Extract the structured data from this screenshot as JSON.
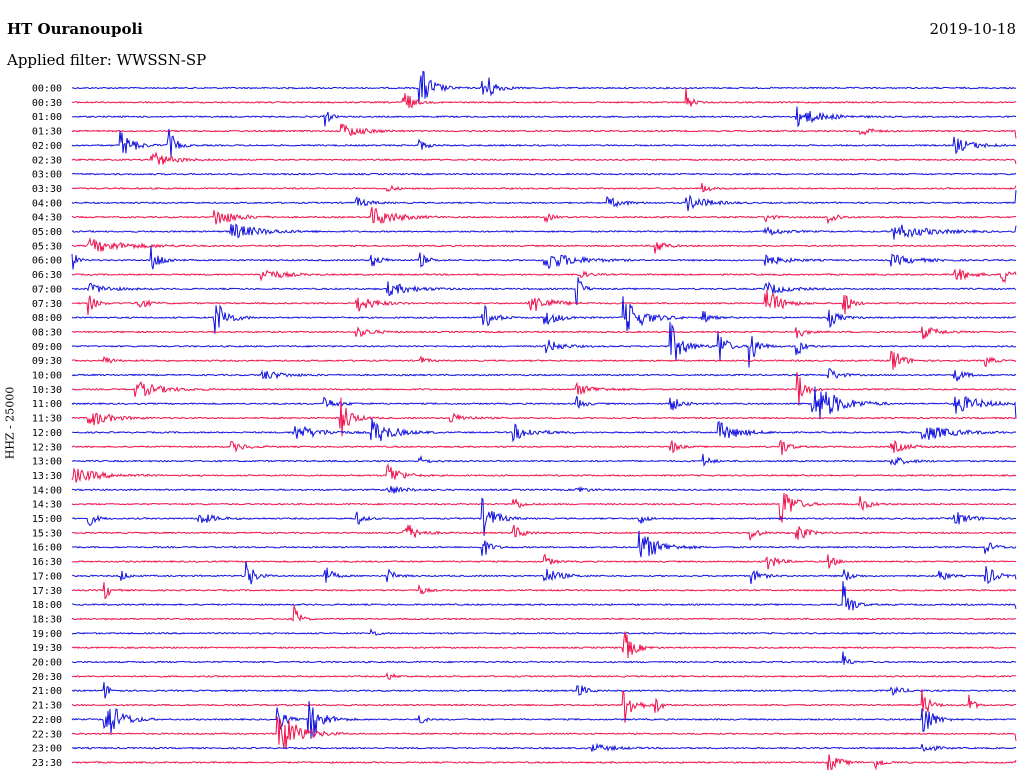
{
  "header": {
    "station": "HT Ouranoupoli",
    "filter": "Applied filter: WWSSN-SP",
    "date": "2019-10-18"
  },
  "colors": {
    "blue": "#1010e0",
    "red": "#f0104a"
  },
  "chart_data": {
    "type": "line",
    "title": "HT Ouranoupoli",
    "subtitle": "Applied filter: WWSSN-SP",
    "date": "2019-10-18",
    "ylabel": "HHZ - 25000",
    "grid": false,
    "x_unit": "minutes",
    "xlim": [
      0,
      30
    ],
    "rows": [
      {
        "label": "00:00",
        "color": "blue",
        "events": [
          [
            11,
            5,
            0.95
          ],
          [
            13,
            4,
            0.9
          ]
        ]
      },
      {
        "label": "00:30",
        "color": "red",
        "events": [
          [
            10.5,
            3,
            0.7
          ],
          [
            19.5,
            2,
            0.55
          ]
        ]
      },
      {
        "label": "01:00",
        "color": "blue",
        "events": [
          [
            8,
            2,
            0.45
          ],
          [
            23,
            10,
            0.35
          ]
        ]
      },
      {
        "label": "01:30",
        "color": "red",
        "events": [
          [
            8.5,
            8,
            0.3
          ],
          [
            25,
            4,
            0.25
          ],
          [
            30,
            3,
            0.8
          ]
        ]
      },
      {
        "label": "02:00",
        "color": "blue",
        "events": [
          [
            1.5,
            5,
            0.6
          ],
          [
            3,
            3,
            0.8
          ],
          [
            11,
            3,
            0.25
          ],
          [
            28,
            8,
            0.3
          ]
        ]
      },
      {
        "label": "02:30",
        "color": "red",
        "events": [
          [
            2.5,
            8,
            0.3
          ],
          [
            30,
            2,
            0.5
          ]
        ]
      },
      {
        "label": "03:00",
        "color": "blue",
        "events": []
      },
      {
        "label": "03:30",
        "color": "red",
        "events": [
          [
            10,
            3,
            0.15
          ],
          [
            20,
            3,
            0.2
          ],
          [
            30,
            3,
            0.4
          ]
        ]
      },
      {
        "label": "04:00",
        "color": "blue",
        "events": [
          [
            9,
            5,
            0.2
          ],
          [
            17,
            6,
            0.2
          ],
          [
            19.5,
            8,
            0.3
          ],
          [
            30,
            8,
            0.85
          ]
        ]
      },
      {
        "label": "04:30",
        "color": "red",
        "events": [
          [
            4.5,
            8,
            0.35
          ],
          [
            9.5,
            10,
            0.35
          ],
          [
            15,
            3,
            0.2
          ],
          [
            22,
            3,
            0.2
          ],
          [
            24,
            3,
            0.4
          ]
        ]
      },
      {
        "label": "05:00",
        "color": "blue",
        "events": [
          [
            5,
            12,
            0.3
          ],
          [
            22,
            6,
            0.2
          ],
          [
            26,
            14,
            0.3
          ],
          [
            30,
            6,
            0.25
          ]
        ]
      },
      {
        "label": "05:30",
        "color": "red",
        "events": [
          [
            0.5,
            15,
            0.25
          ],
          [
            18.5,
            3,
            0.45
          ]
        ]
      },
      {
        "label": "06:00",
        "color": "blue",
        "events": [
          [
            0,
            2,
            0.4
          ],
          [
            2.5,
            4,
            0.5
          ],
          [
            9.5,
            4,
            0.25
          ],
          [
            11,
            3,
            0.35
          ],
          [
            15,
            12,
            0.35
          ],
          [
            22,
            8,
            0.2
          ],
          [
            26,
            10,
            0.2
          ]
        ]
      },
      {
        "label": "06:30",
        "color": "red",
        "events": [
          [
            6,
            8,
            0.25
          ],
          [
            16,
            4,
            0.2
          ],
          [
            28,
            6,
            0.3
          ],
          [
            29.5,
            4,
            0.4
          ]
        ]
      },
      {
        "label": "07:00",
        "color": "blue",
        "events": [
          [
            0.5,
            8,
            0.2
          ],
          [
            10,
            10,
            0.25
          ],
          [
            16,
            2,
            0.95
          ],
          [
            22,
            8,
            0.25
          ]
        ]
      },
      {
        "label": "07:30",
        "color": "red",
        "events": [
          [
            0.5,
            3,
            0.4
          ],
          [
            2,
            4,
            0.3
          ],
          [
            9,
            7,
            0.35
          ],
          [
            14.5,
            8,
            0.4
          ],
          [
            22,
            6,
            0.6
          ],
          [
            24.5,
            3,
            0.5
          ]
        ]
      },
      {
        "label": "08:00",
        "color": "blue",
        "events": [
          [
            4.5,
            5,
            0.75
          ],
          [
            13,
            4,
            0.6
          ],
          [
            15,
            6,
            0.3
          ],
          [
            17.5,
            8,
            0.7
          ],
          [
            20,
            3,
            0.35
          ],
          [
            24,
            4,
            0.4
          ]
        ]
      },
      {
        "label": "08:30",
        "color": "red",
        "events": [
          [
            9,
            6,
            0.2
          ],
          [
            23,
            3,
            0.3
          ],
          [
            27,
            6,
            0.25
          ]
        ]
      },
      {
        "label": "09:00",
        "color": "blue",
        "events": [
          [
            15,
            6,
            0.3
          ],
          [
            19,
            5,
            0.85
          ],
          [
            20.5,
            3,
            0.9
          ],
          [
            21.5,
            3,
            0.95
          ],
          [
            23,
            3,
            0.4
          ]
        ]
      },
      {
        "label": "09:30",
        "color": "red",
        "events": [
          [
            1,
            3,
            0.2
          ],
          [
            11,
            3,
            0.2
          ],
          [
            26,
            4,
            0.6
          ],
          [
            29,
            3,
            0.25
          ]
        ]
      },
      {
        "label": "10:00",
        "color": "blue",
        "events": [
          [
            6,
            8,
            0.2
          ],
          [
            24,
            4,
            0.3
          ],
          [
            28,
            4,
            0.3
          ]
        ]
      },
      {
        "label": "10:30",
        "color": "red",
        "events": [
          [
            2,
            10,
            0.3
          ],
          [
            16,
            8,
            0.2
          ],
          [
            23,
            3,
            0.95
          ]
        ]
      },
      {
        "label": "11:00",
        "color": "blue",
        "events": [
          [
            8,
            6,
            0.2
          ],
          [
            16,
            3,
            0.3
          ],
          [
            19,
            4,
            0.3
          ],
          [
            23.5,
            10,
            0.85
          ],
          [
            28,
            10,
            0.4
          ],
          [
            30,
            4,
            0.5
          ]
        ]
      },
      {
        "label": "11:30",
        "color": "red",
        "events": [
          [
            0.5,
            8,
            0.35
          ],
          [
            8.5,
            4,
            0.85
          ],
          [
            12,
            6,
            0.2
          ]
        ]
      },
      {
        "label": "12:00",
        "color": "blue",
        "events": [
          [
            7,
            10,
            0.3
          ],
          [
            9.5,
            8,
            0.5
          ],
          [
            14,
            8,
            0.3
          ],
          [
            20.5,
            8,
            0.4
          ],
          [
            27,
            12,
            0.3
          ]
        ]
      },
      {
        "label": "12:30",
        "color": "red",
        "events": [
          [
            5,
            6,
            0.2
          ],
          [
            19,
            3,
            0.3
          ],
          [
            22.5,
            3,
            0.4
          ],
          [
            26,
            6,
            0.25
          ]
        ]
      },
      {
        "label": "13:00",
        "color": "blue",
        "events": [
          [
            11,
            3,
            0.2
          ],
          [
            20,
            3,
            0.3
          ],
          [
            26,
            6,
            0.2
          ]
        ]
      },
      {
        "label": "13:30",
        "color": "red",
        "events": [
          [
            0,
            12,
            0.25
          ],
          [
            10,
            5,
            0.5
          ]
        ]
      },
      {
        "label": "14:00",
        "color": "blue",
        "events": [
          [
            10,
            6,
            0.2
          ],
          [
            16,
            4,
            0.15
          ]
        ]
      },
      {
        "label": "14:30",
        "color": "red",
        "events": [
          [
            14,
            3,
            0.3
          ],
          [
            22.5,
            5,
            0.8
          ],
          [
            25,
            4,
            0.3
          ]
        ]
      },
      {
        "label": "15:00",
        "color": "blue",
        "events": [
          [
            0.5,
            3,
            0.3
          ],
          [
            4,
            6,
            0.25
          ],
          [
            9,
            3,
            0.3
          ],
          [
            13,
            5,
            0.75
          ],
          [
            18,
            3,
            0.25
          ],
          [
            28,
            6,
            0.3
          ]
        ]
      },
      {
        "label": "15:30",
        "color": "red",
        "events": [
          [
            10.5,
            5,
            0.5
          ],
          [
            14,
            4,
            0.3
          ],
          [
            21.5,
            3,
            0.4
          ],
          [
            23,
            4,
            0.4
          ]
        ]
      },
      {
        "label": "16:00",
        "color": "blue",
        "events": [
          [
            13,
            3,
            0.5
          ],
          [
            18,
            8,
            0.6
          ],
          [
            29,
            4,
            0.25
          ]
        ]
      },
      {
        "label": "16:30",
        "color": "red",
        "events": [
          [
            15,
            3,
            0.25
          ],
          [
            22,
            4,
            0.45
          ],
          [
            24,
            3,
            0.3
          ]
        ]
      },
      {
        "label": "17:00",
        "color": "blue",
        "events": [
          [
            1.5,
            2,
            0.4
          ],
          [
            5.5,
            3,
            0.75
          ],
          [
            8,
            3,
            0.45
          ],
          [
            10,
            3,
            0.3
          ],
          [
            15,
            6,
            0.3
          ],
          [
            21.5,
            4,
            0.35
          ],
          [
            24.5,
            3,
            0.3
          ],
          [
            27.5,
            3,
            0.35
          ],
          [
            29,
            4,
            0.45
          ],
          [
            30,
            3,
            0.55
          ]
        ]
      },
      {
        "label": "17:30",
        "color": "red",
        "events": [
          [
            1,
            2,
            0.5
          ],
          [
            11,
            3,
            0.2
          ]
        ]
      },
      {
        "label": "18:00",
        "color": "blue",
        "events": [
          [
            24.5,
            3,
            0.95
          ],
          [
            30,
            2,
            0.3
          ]
        ]
      },
      {
        "label": "18:30",
        "color": "red",
        "events": [
          [
            7,
            2,
            0.95
          ]
        ]
      },
      {
        "label": "19:00",
        "color": "blue",
        "events": [
          [
            9.5,
            2,
            0.2
          ]
        ]
      },
      {
        "label": "19:30",
        "color": "red",
        "events": [
          [
            17.5,
            4,
            0.7
          ]
        ]
      },
      {
        "label": "20:00",
        "color": "blue",
        "events": [
          [
            24.5,
            2,
            0.4
          ]
        ]
      },
      {
        "label": "20:30",
        "color": "red",
        "events": [
          [
            10,
            3,
            0.15
          ]
        ]
      },
      {
        "label": "21:00",
        "color": "blue",
        "events": [
          [
            1,
            2,
            0.4
          ],
          [
            16,
            3,
            0.45
          ],
          [
            26,
            4,
            0.25
          ]
        ]
      },
      {
        "label": "21:30",
        "color": "red",
        "events": [
          [
            17.5,
            4,
            0.8
          ],
          [
            18.5,
            2,
            0.5
          ],
          [
            27,
            3,
            0.6
          ],
          [
            28.5,
            2,
            0.4
          ]
        ]
      },
      {
        "label": "22:00",
        "color": "blue",
        "events": [
          [
            1,
            6,
            0.95
          ],
          [
            6.5,
            3,
            0.6
          ],
          [
            7.5,
            5,
            0.95
          ],
          [
            11,
            2,
            0.3
          ],
          [
            27,
            4,
            0.8
          ]
        ]
      },
      {
        "label": "22:30",
        "color": "red",
        "events": [
          [
            6.5,
            8,
            0.95
          ],
          [
            30,
            2,
            0.25
          ]
        ]
      },
      {
        "label": "23:00",
        "color": "blue",
        "events": [
          [
            16.5,
            8,
            0.15
          ],
          [
            27,
            4,
            0.25
          ]
        ]
      },
      {
        "label": "23:30",
        "color": "red",
        "events": [
          [
            24,
            5,
            0.35
          ],
          [
            25.5,
            3,
            0.3
          ],
          [
            30,
            8,
            0.95
          ]
        ]
      }
    ]
  }
}
